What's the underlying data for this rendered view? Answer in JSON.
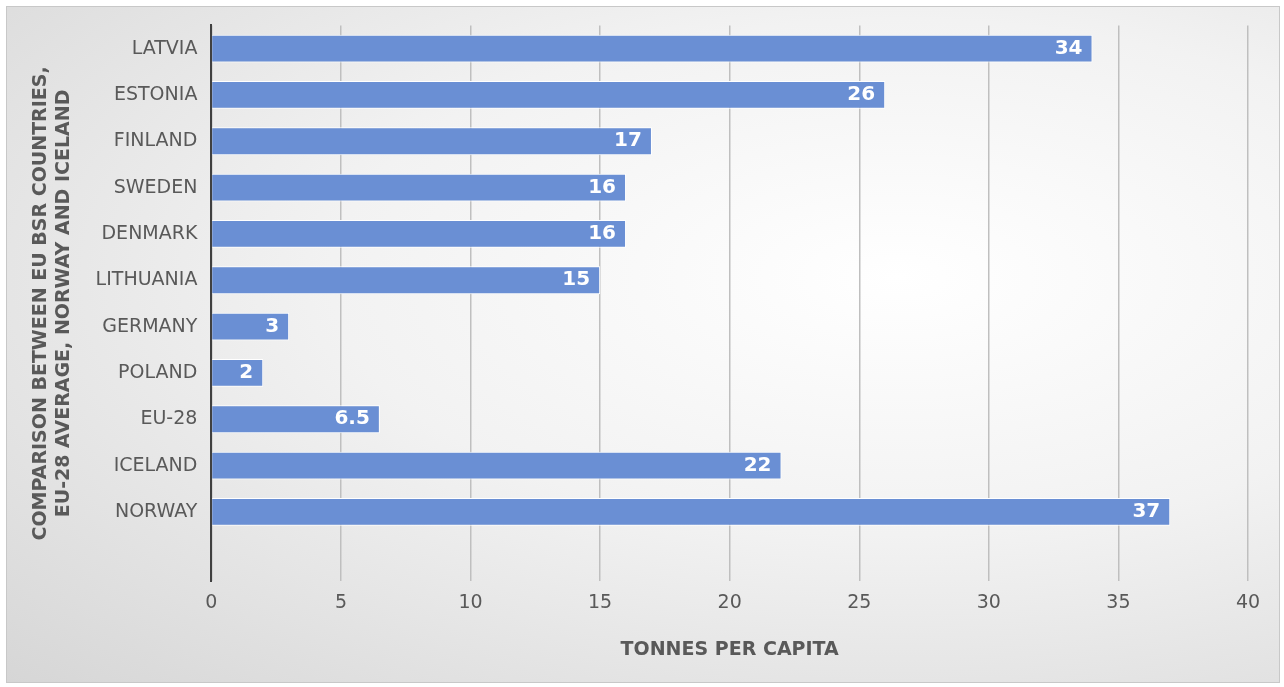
{
  "chart_data": {
    "type": "bar",
    "orientation": "horizontal",
    "categories": [
      "LATVIA",
      "ESTONIA",
      "FINLAND",
      "SWEDEN",
      "DENMARK",
      "LITHUANIA",
      "GERMANY",
      "POLAND",
      "EU-28",
      "ICELAND",
      "NORWAY",
      null
    ],
    "values": [
      34,
      26,
      17,
      16,
      16,
      15,
      3,
      2,
      6.5,
      22,
      37,
      null
    ],
    "color": "#6a8fd4",
    "xlabel": "TONNES PER CAPITA",
    "ylabel": "COMPARISON BETWEEN EU BSR COUNTRIES, EU-28 AVERAGE, NORWAY AND ICELAND",
    "xlim": [
      0,
      40
    ],
    "xticks": [
      0,
      5,
      10,
      15,
      20,
      25,
      30,
      35,
      40
    ],
    "grid": "x",
    "legend": false,
    "data_labels": true
  }
}
